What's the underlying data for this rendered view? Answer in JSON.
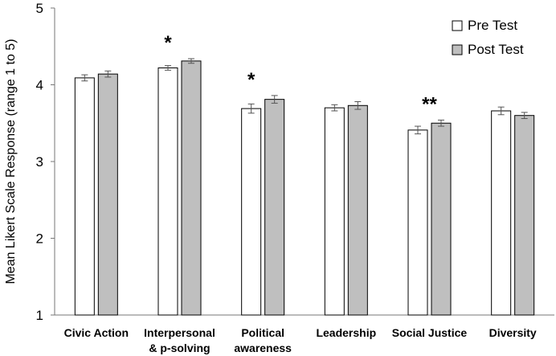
{
  "chart_data": {
    "type": "bar",
    "title": "",
    "xlabel": "",
    "ylabel": "Mean Likert Scale Response (range 1 to 5)",
    "ylim": [
      1,
      5
    ],
    "yticks": [
      1,
      2,
      3,
      4,
      5
    ],
    "grid": false,
    "legend_position": "top-right",
    "categories": [
      [
        "Civic Action"
      ],
      [
        "Interpersonal",
        "& p-solving"
      ],
      [
        "Political",
        "awareness"
      ],
      [
        "Leadership"
      ],
      [
        "Social Justice"
      ],
      [
        "Diversity"
      ]
    ],
    "series": [
      {
        "name": "Pre Test",
        "color": "#ffffff",
        "values": [
          4.09,
          4.22,
          3.69,
          3.7,
          3.41,
          3.66
        ],
        "errors": [
          0.04,
          0.03,
          0.06,
          0.04,
          0.05,
          0.05
        ]
      },
      {
        "name": "Post Test",
        "color": "#bfbfbf",
        "values": [
          4.14,
          4.31,
          3.81,
          3.73,
          3.5,
          3.6
        ],
        "errors": [
          0.04,
          0.03,
          0.05,
          0.05,
          0.04,
          0.04
        ]
      }
    ],
    "significance": [
      "",
      "*",
      "*",
      "",
      "**",
      ""
    ]
  }
}
